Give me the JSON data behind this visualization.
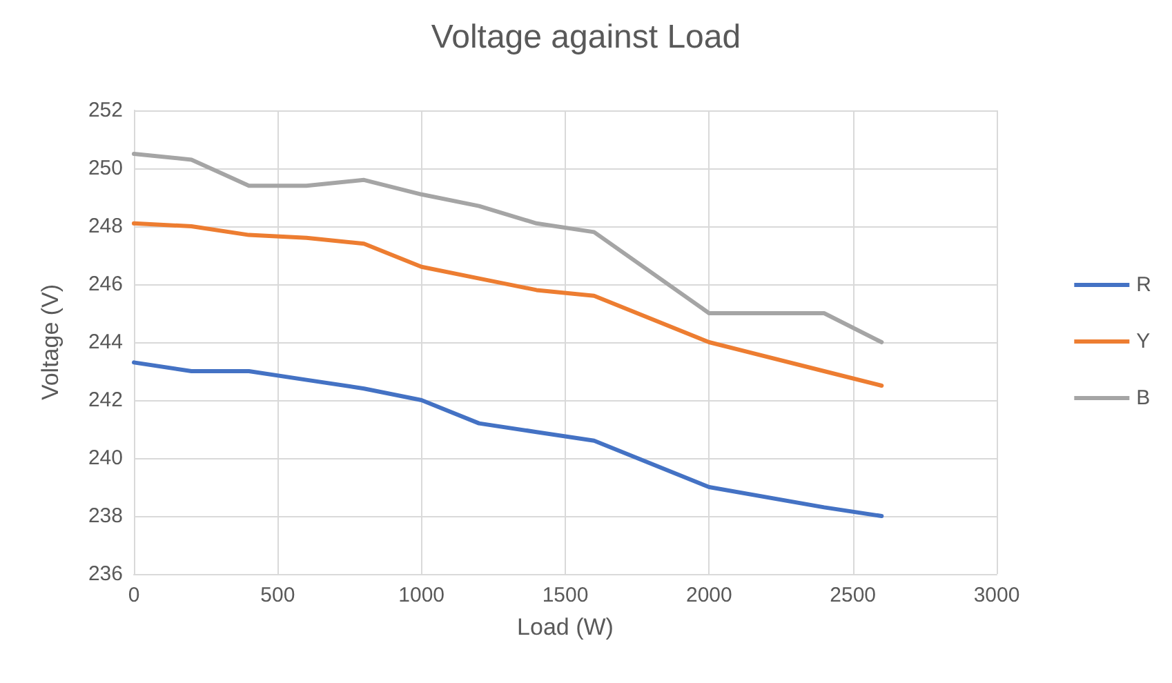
{
  "chart_data": {
    "type": "line",
    "title": "Voltage against Load",
    "xlabel": "Load (W)",
    "ylabel": "Voltage (V)",
    "x": [
      0,
      200,
      400,
      600,
      800,
      1000,
      1200,
      1400,
      1600,
      2000,
      2400,
      2600
    ],
    "series": [
      {
        "name": "R",
        "color": "#4472c4",
        "values": [
          243.3,
          243.0,
          243.0,
          242.7,
          242.4,
          242.0,
          241.2,
          240.9,
          240.6,
          239.0,
          238.3,
          238.0
        ]
      },
      {
        "name": "Y",
        "color": "#ed7d31",
        "values": [
          248.1,
          248.0,
          247.7,
          247.6,
          247.4,
          246.6,
          246.2,
          245.8,
          245.6,
          244.0,
          243.0,
          242.5
        ]
      },
      {
        "name": "B",
        "color": "#a5a5a5",
        "values": [
          250.5,
          250.3,
          249.4,
          249.4,
          249.6,
          249.1,
          248.7,
          248.1,
          247.8,
          245.0,
          245.0,
          244.0
        ]
      }
    ],
    "xlim": [
      0,
      3000
    ],
    "xticks": [
      0,
      500,
      1000,
      1500,
      2000,
      2500,
      3000
    ],
    "ylim": [
      236,
      252
    ],
    "yticks": [
      236,
      238,
      240,
      242,
      244,
      246,
      248,
      250,
      252
    ],
    "grid": true,
    "legend": "right",
    "marker": "none",
    "line_style": "solid"
  }
}
